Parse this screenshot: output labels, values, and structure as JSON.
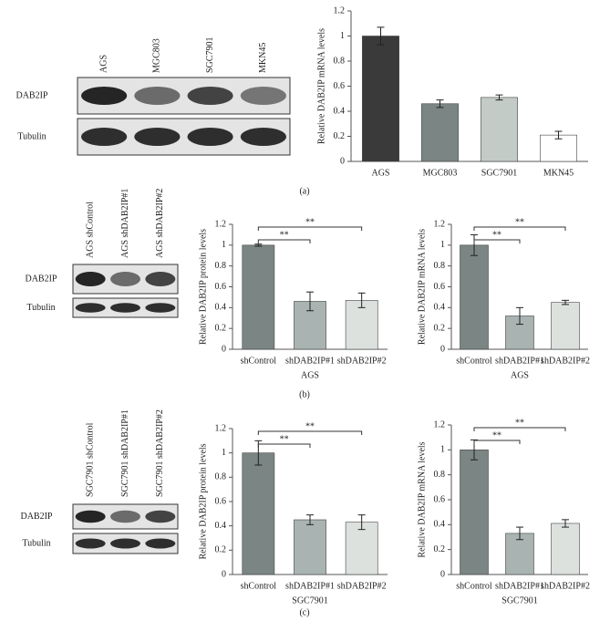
{
  "panel_labels": [
    "(a)",
    "(b)",
    "(c)"
  ],
  "blots": [
    {
      "lanes": [
        "AGS",
        "MGC803",
        "SGC7901",
        "MKN45"
      ],
      "rows": [
        "DAB2IP",
        "Tubulin"
      ]
    },
    {
      "lanes": [
        "AGS shControl",
        "AGS shDAB2IP#1",
        "AGS shDAB2IP#2"
      ],
      "rows": [
        "DAB2IP",
        "Tubulin"
      ]
    },
    {
      "lanes": [
        "SGC7901 shControl",
        "SGC7901 shDAB2IP#1",
        "SGC7901 shDAB2IP#2"
      ],
      "rows": [
        "DAB2IP",
        "Tubulin"
      ]
    }
  ],
  "chart_data": [
    {
      "type": "bar",
      "y_label": "Relative DAB2IP mRNA levels",
      "categories": [
        "AGS",
        "MGC803",
        "SGC7901",
        "MKN45"
      ],
      "values": [
        1.0,
        0.46,
        0.51,
        0.21
      ],
      "errors": [
        0.07,
        0.03,
        0.02,
        0.03
      ],
      "colors": [
        "#3a3a3a",
        "#7a8584",
        "#c3cbc6",
        "#ffffff"
      ],
      "ylim": [
        0,
        1.2
      ],
      "yticks": [
        0,
        0.2,
        0.4,
        0.6,
        0.8,
        1,
        1.2
      ],
      "grid": false,
      "annotations": []
    },
    {
      "type": "bar",
      "y_label": "Relative DAB2IP protein levels",
      "x_label": "AGS",
      "categories": [
        "shControl",
        "shDAB2IP#1",
        "shDAB2IP#2"
      ],
      "values": [
        1.0,
        0.46,
        0.47
      ],
      "errors": [
        0.01,
        0.09,
        0.07
      ],
      "colors": [
        "#7a8584",
        "#a9b3b2",
        "#dde1de"
      ],
      "ylim": [
        0,
        1.2
      ],
      "yticks": [
        0,
        0.2,
        0.4,
        0.6,
        0.8,
        1,
        1.2
      ],
      "grid": false,
      "annotations": [
        "**",
        "**"
      ]
    },
    {
      "type": "bar",
      "y_label": "Relative DAB2IP mRNA levels",
      "x_label": "AGS",
      "categories": [
        "shControl",
        "shDAB2IP#1",
        "shDAB2IP#2"
      ],
      "values": [
        1.0,
        0.32,
        0.45
      ],
      "errors": [
        0.1,
        0.08,
        0.02
      ],
      "colors": [
        "#7a8584",
        "#a9b3b2",
        "#dde1de"
      ],
      "ylim": [
        0,
        1.2
      ],
      "yticks": [
        0,
        0.2,
        0.4,
        0.6,
        0.8,
        1,
        1.2
      ],
      "grid": false,
      "annotations": [
        "**",
        "**"
      ]
    },
    {
      "type": "bar",
      "y_label": "Relative DAB2IP protein levels",
      "x_label": "SGC7901",
      "categories": [
        "shControl",
        "shDAB2IP#1",
        "shDAB2IP#2"
      ],
      "values": [
        1.0,
        0.45,
        0.43
      ],
      "errors": [
        0.1,
        0.04,
        0.06
      ],
      "colors": [
        "#7a8584",
        "#a9b3b2",
        "#dde1de"
      ],
      "ylim": [
        0,
        1.2
      ],
      "yticks": [
        0,
        0.2,
        0.4,
        0.6,
        0.8,
        1,
        1.2
      ],
      "grid": false,
      "annotations": [
        "**",
        "**"
      ]
    },
    {
      "type": "bar",
      "y_label": "Relative DAB2IP mRNA levels",
      "x_label": "SGC7901",
      "categories": [
        "shControl",
        "shDAB2IP#1",
        "shDAB2IP#2"
      ],
      "values": [
        1.0,
        0.33,
        0.41
      ],
      "errors": [
        0.08,
        0.05,
        0.03
      ],
      "colors": [
        "#7a8584",
        "#a9b3b2",
        "#dde1de"
      ],
      "ylim": [
        0,
        1.2
      ],
      "yticks": [
        0,
        0.2,
        0.4,
        0.6,
        0.8,
        1,
        1.2
      ],
      "grid": false,
      "annotations": [
        "**",
        "**"
      ]
    }
  ]
}
